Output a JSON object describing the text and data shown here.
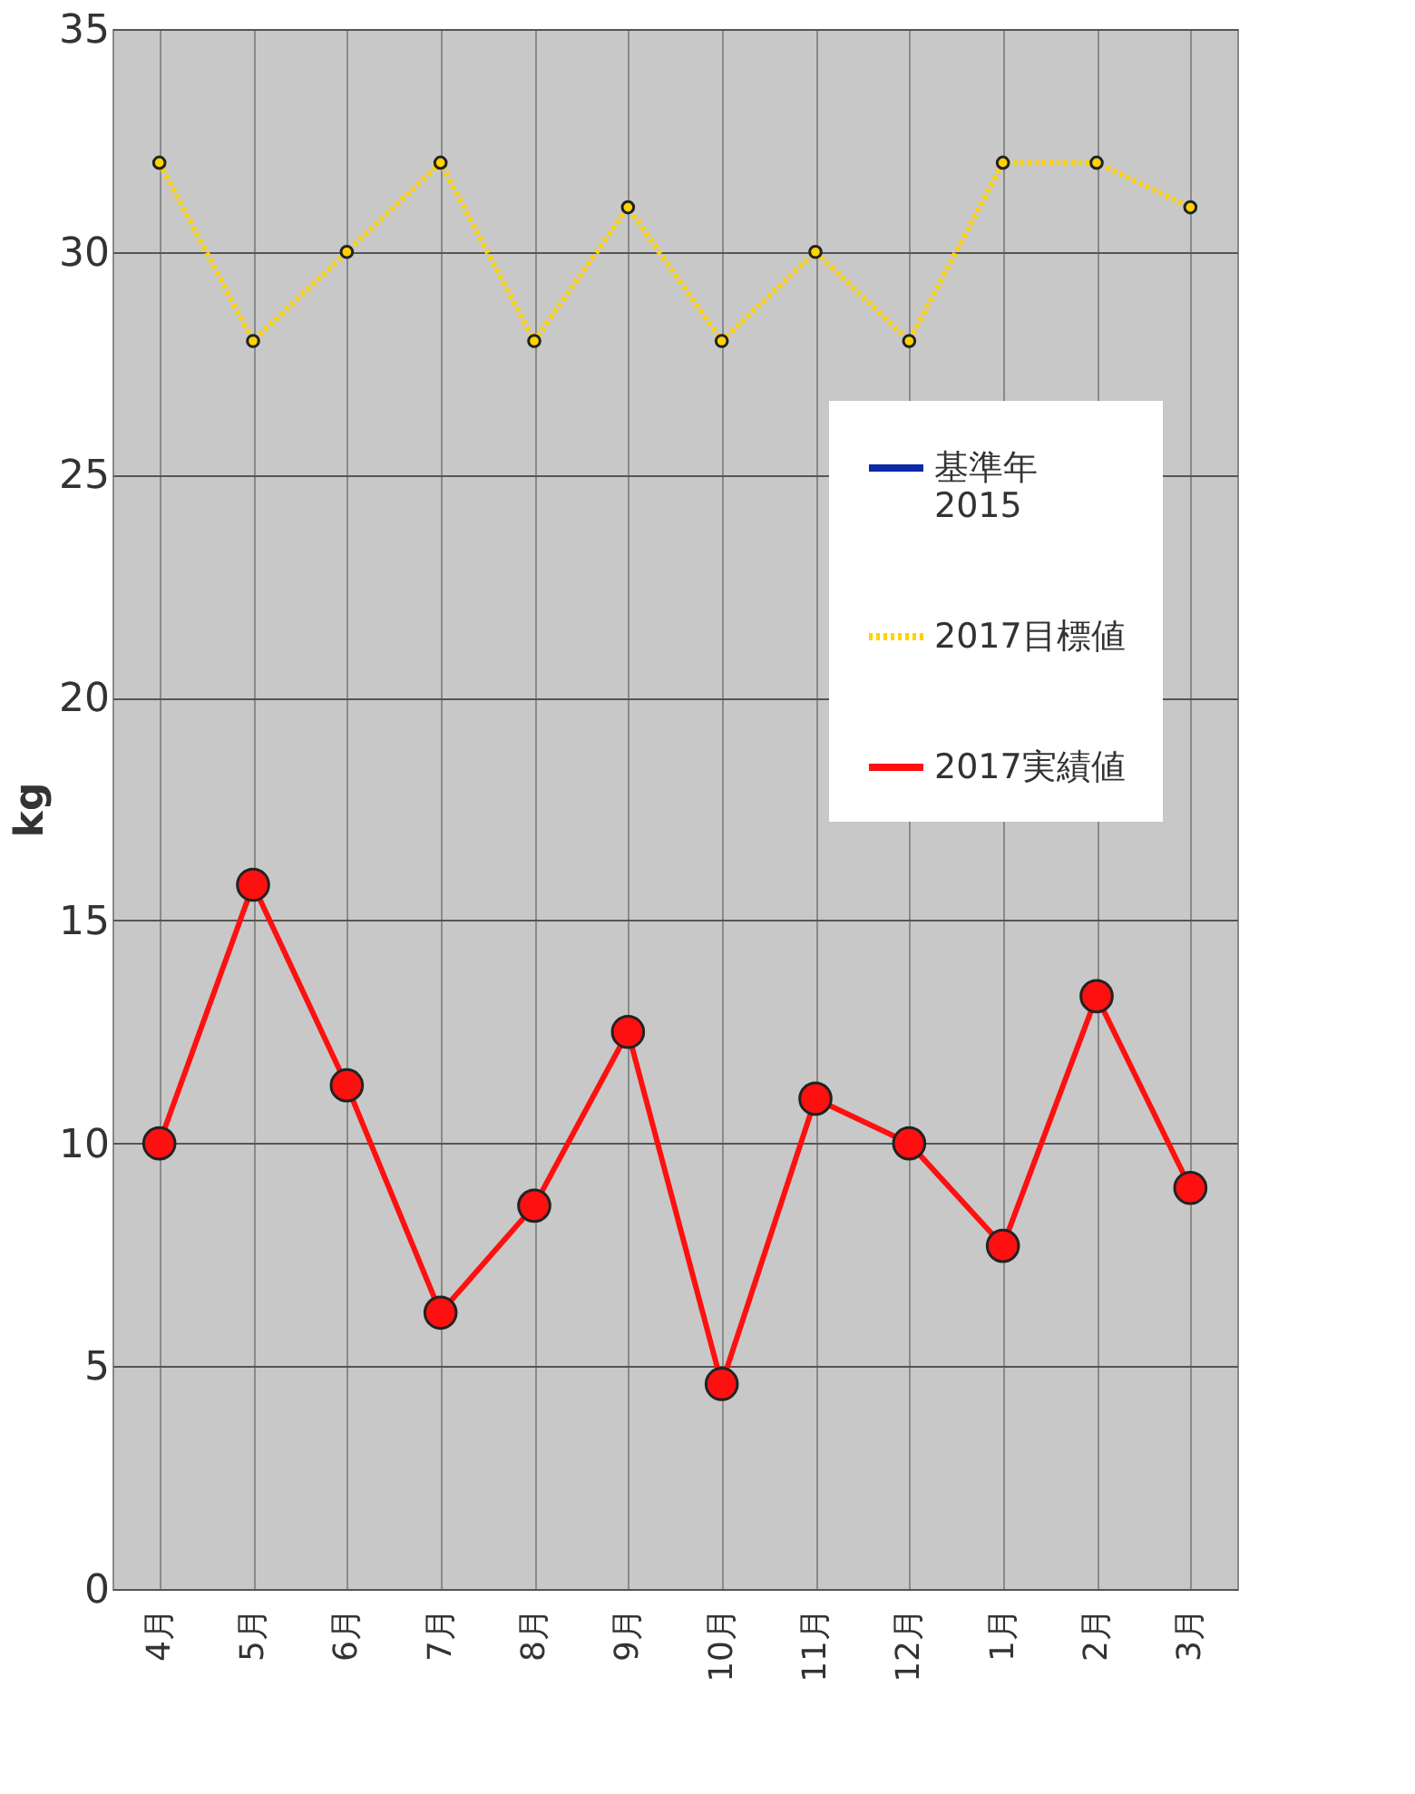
{
  "chart_data": {
    "type": "line",
    "ylabel": "kg",
    "categories": [
      "4月",
      "5月",
      "6月",
      "7月",
      "8月",
      "9月",
      "10月",
      "11月",
      "12月",
      "1月",
      "2月",
      "3月"
    ],
    "series": [
      {
        "name": "基準年\n2015",
        "color": "#0a2aa8",
        "values": [
          null,
          null,
          null,
          null,
          null,
          null,
          null,
          null,
          null,
          null,
          null,
          null
        ]
      },
      {
        "name": "2017目標値",
        "color": "#ffd200",
        "line_style": "dotted",
        "values": [
          32,
          28,
          30,
          32,
          28,
          31,
          28,
          30,
          28,
          32,
          32,
          31
        ]
      },
      {
        "name": "2017実績値",
        "color": "#ff1010",
        "values": [
          10,
          15.8,
          11.3,
          6.2,
          8.6,
          12.5,
          4.6,
          11.0,
          10.0,
          7.7,
          13.3,
          9.0
        ]
      }
    ],
    "ylim": [
      0,
      35
    ],
    "yticks": [
      0,
      5,
      10,
      15,
      20,
      25,
      30,
      35
    ],
    "grid": true,
    "marker": "circle",
    "legend": "right"
  }
}
